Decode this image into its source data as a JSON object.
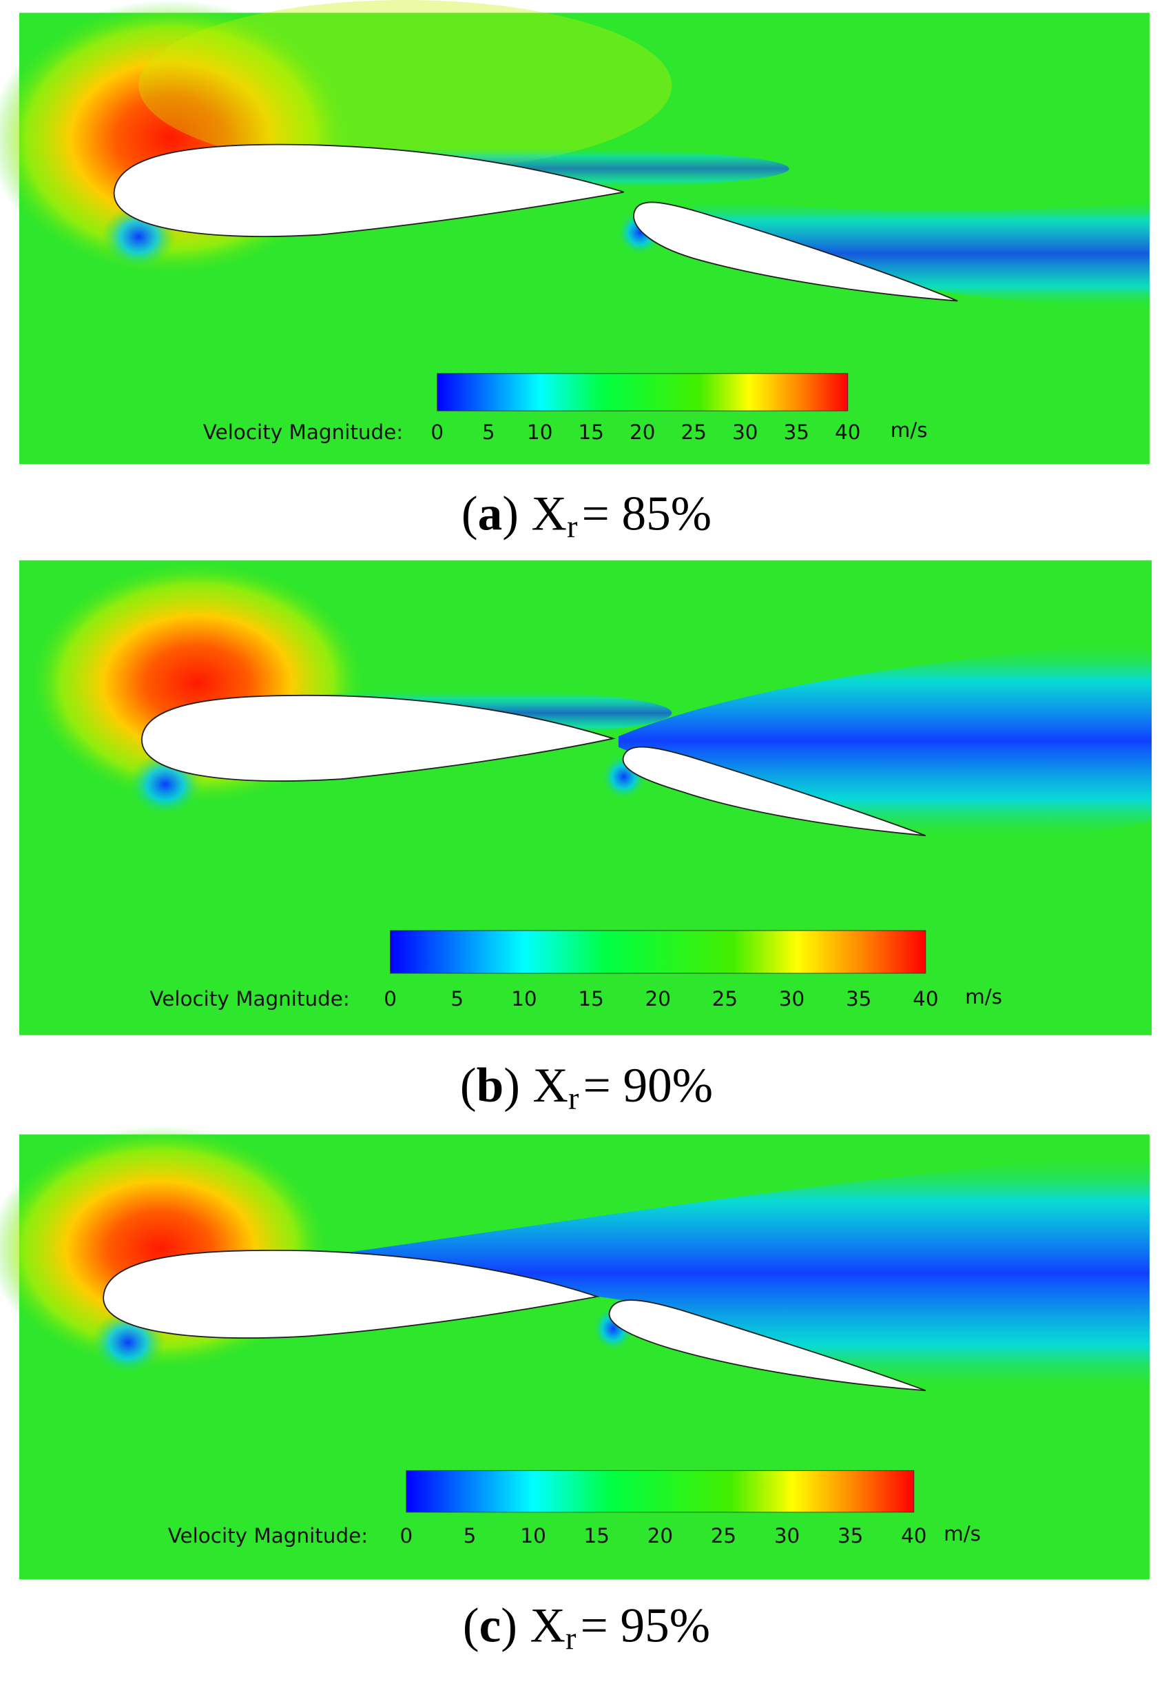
{
  "panels": [
    {
      "colorbar": {
        "label": "Velocity Magnitude:",
        "ticks": [
          0,
          5,
          10,
          15,
          20,
          25,
          30,
          35,
          40
        ],
        "unit": "m/s"
      },
      "caption": {
        "open": "(",
        "letter": "a",
        "close": ")",
        "symbol": "X",
        "subscript": "r",
        "value": "= 85%"
      }
    },
    {
      "colorbar": {
        "label": "Velocity Magnitude:",
        "ticks": [
          0,
          5,
          10,
          15,
          20,
          25,
          30,
          35,
          40
        ],
        "unit": "m/s"
      },
      "caption": {
        "open": "(",
        "letter": "b",
        "close": ")",
        "symbol": "X",
        "subscript": "r",
        "value": "= 90%"
      }
    },
    {
      "colorbar": {
        "label": "Velocity Magnitude:",
        "ticks": [
          0,
          5,
          10,
          15,
          20,
          25,
          30,
          35,
          40
        ],
        "unit": "m/s"
      },
      "caption": {
        "open": "(",
        "letter": "c",
        "close": ")",
        "symbol": "X",
        "subscript": "r",
        "value": "= 95%"
      }
    }
  ]
}
